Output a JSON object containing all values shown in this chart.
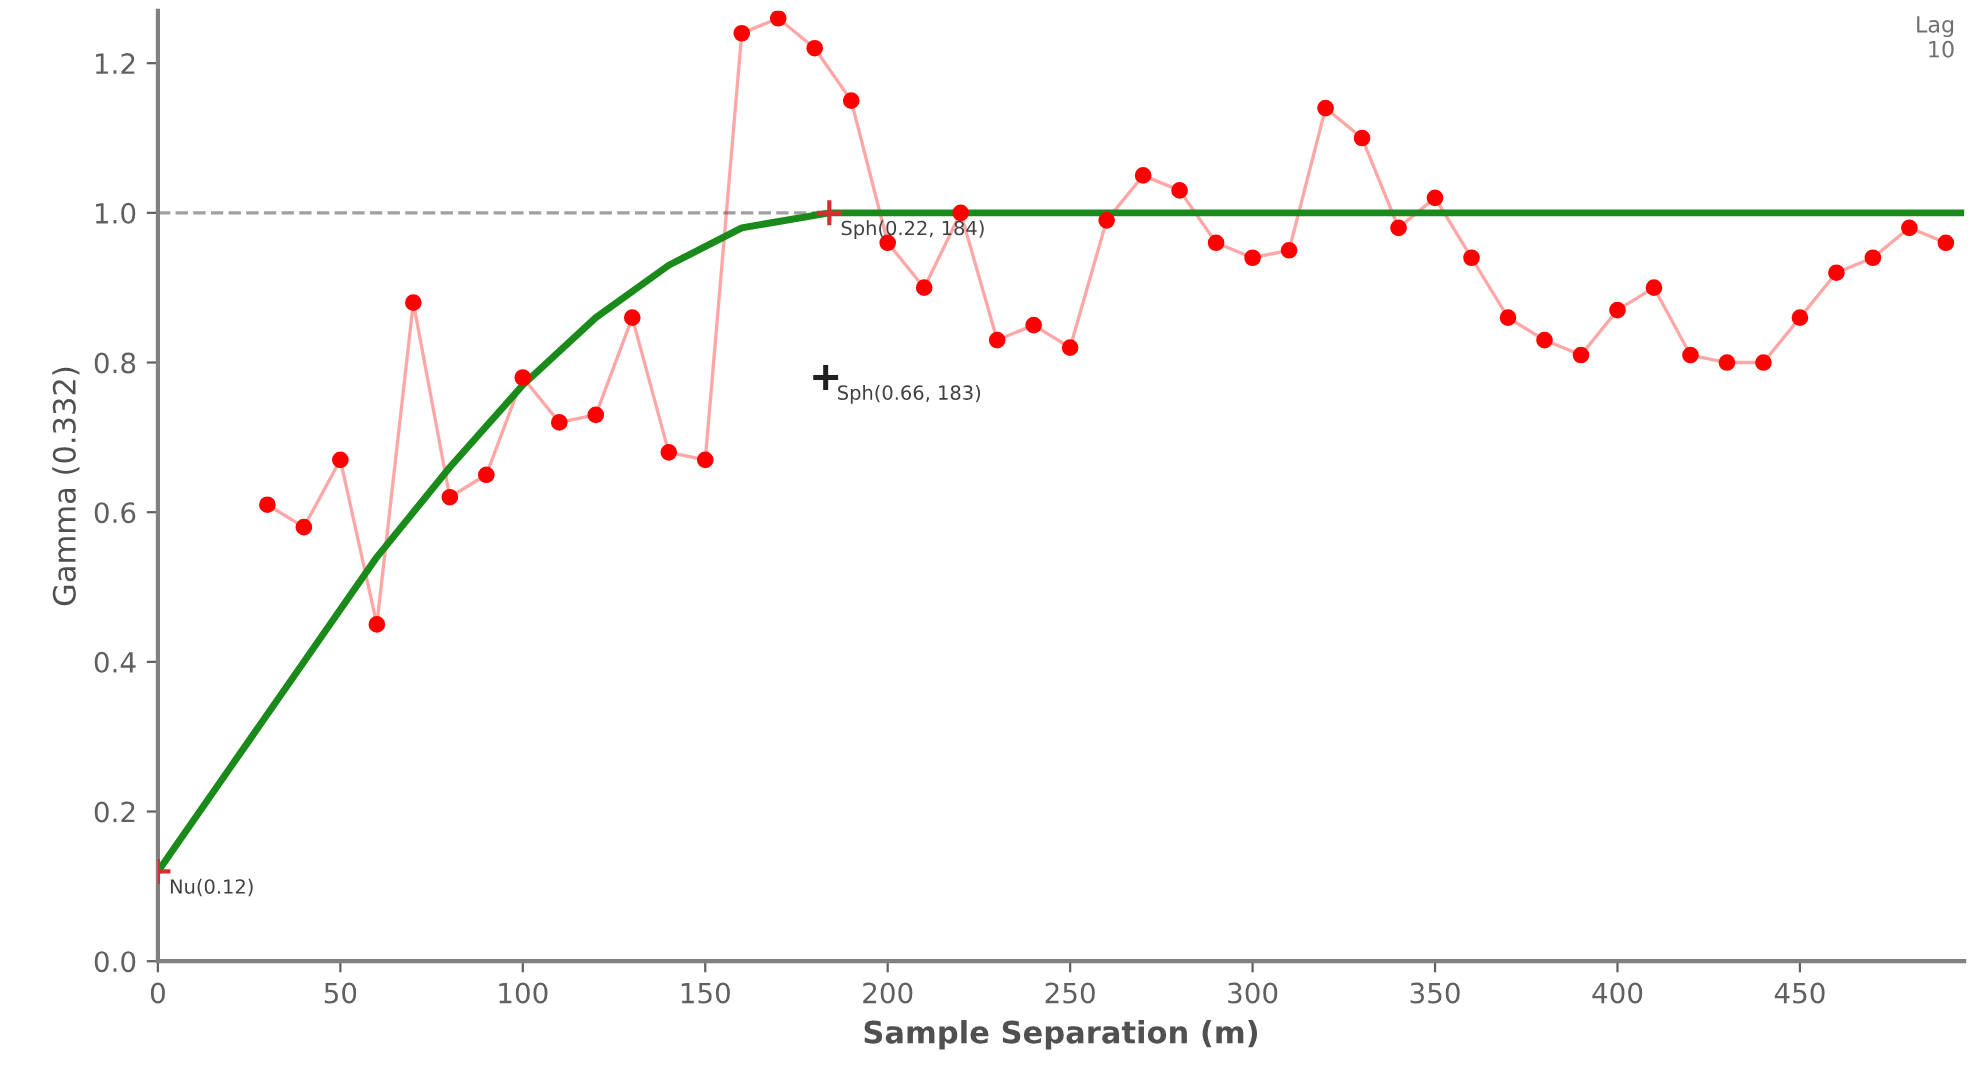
{
  "chart_data": {
    "type": "line",
    "xlabel": "Sample Separation (m)",
    "ylabel": "Gamma (0.332)",
    "xlim": [
      0,
      495
    ],
    "xticks": [
      0,
      50,
      100,
      150,
      200,
      250,
      300,
      350,
      400,
      450
    ],
    "ylim": [
      0,
      1.27
    ],
    "yticks": [
      {
        "value": 0,
        "label": "0.0"
      },
      0.2,
      0.4,
      0.6,
      0.8,
      {
        "value": 1,
        "label": "1.0"
      },
      1.2
    ],
    "grid": false,
    "legend": false,
    "series": [
      {
        "color": "#ff0000",
        "marker": "circle",
        "x": [
          30,
          40,
          50,
          60,
          70,
          80,
          90,
          100,
          110,
          120,
          130,
          140,
          150,
          160,
          170,
          180,
          190,
          200,
          210,
          220,
          230,
          240,
          250,
          260,
          270,
          280,
          290,
          300,
          310,
          320,
          330,
          340,
          350,
          360,
          370,
          380,
          390,
          400,
          410,
          420,
          430,
          440,
          450,
          460,
          470,
          480,
          490
        ],
        "values": [
          0.61,
          0.58,
          0.67,
          0.45,
          0.88,
          0.62,
          0.65,
          0.78,
          0.72,
          0.73,
          0.86,
          0.68,
          0.67,
          1.24,
          1.26,
          1.22,
          1.15,
          0.96,
          0.9,
          1.0,
          0.83,
          0.85,
          0.82,
          0.99,
          1.05,
          1.03,
          0.96,
          0.94,
          0.95,
          1.14,
          1.1,
          0.98,
          1.02,
          0.94,
          0.86,
          0.83,
          0.81,
          0.87,
          0.9,
          0.81,
          0.8,
          0.8,
          0.86,
          0.92,
          0.94,
          0.98,
          0.96
        ]
      },
      {
        "color": "#1a8a1a",
        "marker": "none",
        "x": [
          0,
          20,
          40,
          60,
          80,
          100,
          120,
          140,
          160,
          184,
          495
        ],
        "values": [
          0.12,
          0.26,
          0.4,
          0.54,
          0.66,
          0.77,
          0.86,
          0.93,
          0.98,
          1.0,
          1.0
        ]
      },
      {
        "type": "scatter",
        "name": "Sph(0.66, 183)",
        "color": "#202020",
        "marker": "cross",
        "x": [
          183
        ],
        "values": [
          0.78
        ]
      }
    ],
    "ref_lines": [
      {
        "axis": "y",
        "value": 1.0,
        "color": "#a0a0a0",
        "line_style": "dashed"
      }
    ],
    "annotations": [
      {
        "text": "Nu(0.12)",
        "x": 0,
        "y": 0.12
      },
      {
        "text": "Sph(0.22, 184)",
        "x": 184,
        "y": 1.0
      },
      "Lag\n10"
    ]
  }
}
